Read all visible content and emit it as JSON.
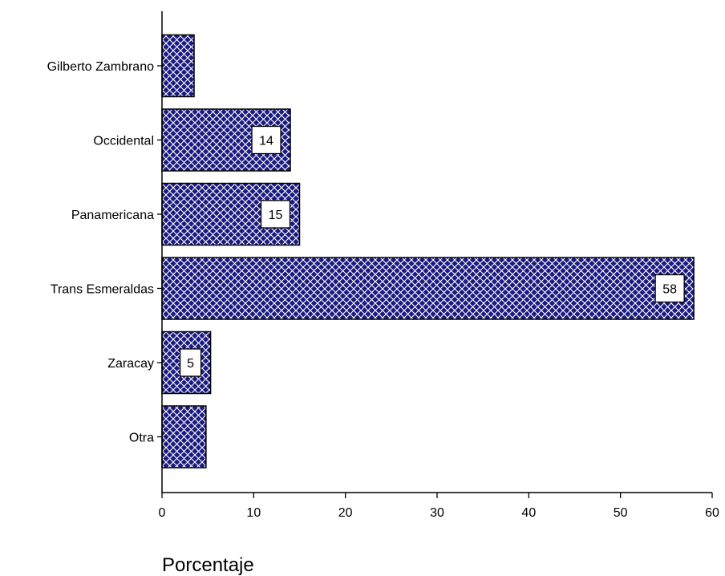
{
  "chart_data": {
    "type": "bar",
    "orientation": "horizontal",
    "categories": [
      "Gilberto Zambrano",
      "Occidental",
      "Panamericana",
      "Trans Esmeraldas",
      "Zaracay",
      "Otra"
    ],
    "values": [
      3.5,
      14,
      15,
      58,
      5.3,
      4.8
    ],
    "data_labels": [
      "",
      "14",
      "15",
      "58",
      "5",
      ""
    ],
    "xticks": [
      "0",
      "10",
      "20",
      "30",
      "40",
      "50",
      "60"
    ],
    "xlim": [
      0,
      60
    ],
    "xlabel": "Porcentaje",
    "ylabel": "",
    "title": "",
    "grid": false,
    "bar_fill": "#1a1a80",
    "bar_pattern": "crosshatch",
    "pattern_line_color": "#ffffff"
  }
}
